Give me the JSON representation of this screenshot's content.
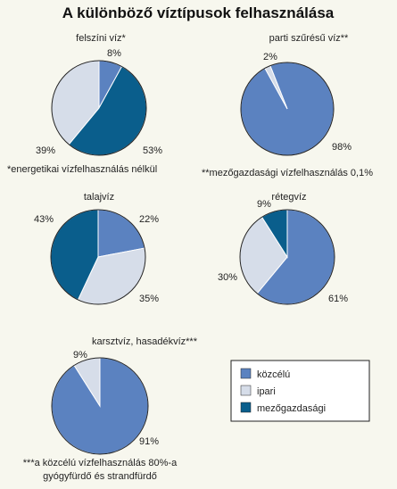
{
  "title": "A különböző víztípusok felhasználása",
  "colors": {
    "kozcelu": "#5b82c0",
    "ipari": "#d6dde9",
    "mezogazdasagi": "#0a5e8c",
    "outline": "#222222"
  },
  "chart_data": [
    {
      "type": "pie",
      "title": "felszíni víz*",
      "note": "*energetikai vízfelhasználás nélkül",
      "slices": [
        {
          "category": "közcélú",
          "value": 8,
          "label": "8%"
        },
        {
          "category": "mezőgazdasági",
          "value": 53,
          "label": "53%"
        },
        {
          "category": "ipari",
          "value": 39,
          "label": "39%"
        }
      ]
    },
    {
      "type": "pie",
      "title": "parti szűrésű víz**",
      "note": "**mezőgazdasági vízfelhasználás 0,1%",
      "slices": [
        {
          "category": "közcélú",
          "value": 98,
          "label": "98%"
        },
        {
          "category": "ipari",
          "value": 2,
          "label": "2%"
        }
      ]
    },
    {
      "type": "pie",
      "title": "talajvíz",
      "note": "",
      "slices": [
        {
          "category": "közcélú",
          "value": 22,
          "label": "22%"
        },
        {
          "category": "ipari",
          "value": 35,
          "label": "35%"
        },
        {
          "category": "mezőgazdasági",
          "value": 43,
          "label": "43%"
        }
      ]
    },
    {
      "type": "pie",
      "title": "rétegvíz",
      "note": "",
      "slices": [
        {
          "category": "közcélú",
          "value": 61,
          "label": "61%"
        },
        {
          "category": "ipari",
          "value": 30,
          "label": "30%"
        },
        {
          "category": "mezőgazdasági",
          "value": 9,
          "label": "9%"
        }
      ]
    },
    {
      "type": "pie",
      "title": "karsztvíz, hasadékvíz***",
      "note": "***a közcélú vízfelhasználás 80%-a gyógyfürdő és strandfürdő",
      "slices": [
        {
          "category": "közcélú",
          "value": 91,
          "label": "91%"
        },
        {
          "category": "ipari",
          "value": 9,
          "label": "9%"
        }
      ]
    }
  ],
  "legend": {
    "placement": "bottom-right",
    "items": [
      {
        "key": "kozcelu",
        "label": "közcélú"
      },
      {
        "key": "ipari",
        "label": "ipari"
      },
      {
        "key": "mezogazdasagi",
        "label": "mezőgazdasági"
      }
    ]
  }
}
